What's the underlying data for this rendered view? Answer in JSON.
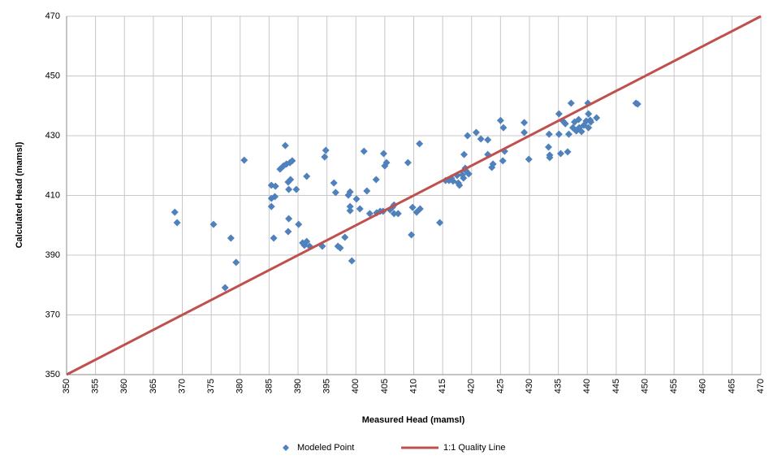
{
  "chart_data": {
    "type": "scatter",
    "x_label": "Measured Head (mamsl)",
    "y_label": "Calculated Head (mamsl)",
    "xlim": [
      350,
      470
    ],
    "ylim": [
      350,
      470
    ],
    "xticks": [
      350,
      355,
      360,
      365,
      370,
      375,
      380,
      385,
      390,
      395,
      400,
      405,
      410,
      415,
      420,
      425,
      430,
      435,
      440,
      445,
      450,
      455,
      460,
      465,
      470
    ],
    "yticks": [
      350,
      370,
      390,
      410,
      430,
      450,
      470
    ],
    "grid": true,
    "legend": "bottom",
    "series": [
      {
        "name": "Modeled Point",
        "color": "#4f81bd",
        "mode": "markers",
        "x": [
          368.7,
          369.1,
          375.4,
          378.4,
          377.4,
          379.3,
          380.7,
          385.4,
          386.1,
          385.4,
          386.0,
          385.4,
          385.8,
          386.9,
          387.5,
          387.8,
          388.0,
          388.6,
          389.0,
          388.3,
          388.7,
          388.4,
          388.4,
          388.3,
          389.7,
          390.1,
          391.5,
          390.8,
          391.1,
          391.5,
          392.0,
          394.2,
          394.8,
          394.6,
          396.2,
          396.5,
          396.9,
          397.3,
          398.1,
          398.7,
          399.0,
          399.0,
          399.0,
          399.3,
          400.1,
          400.7,
          401.4,
          401.9,
          402.4,
          403.5,
          403.6,
          404.2,
          404.7,
          404.8,
          405.0,
          405.3,
          405.9,
          406.3,
          406.6,
          406.6,
          407.3,
          409.0,
          409.6,
          409.8,
          410.5,
          411.1,
          411.0,
          414.5,
          415.5,
          416.1,
          416.5,
          416.8,
          417.5,
          417.7,
          417.9,
          418.4,
          418.6,
          418.9,
          418.7,
          419.0,
          419.5,
          419.3,
          420.8,
          421.6,
          422.8,
          422.8,
          423.5,
          423.7,
          425.0,
          425.5,
          425.7,
          425.4,
          429.1,
          429.1,
          429.9,
          433.4,
          433.3,
          433.5,
          433.5,
          435.1,
          435.1,
          435.4,
          435.8,
          436.2,
          436.6,
          437.2,
          436.8,
          437.5,
          437.8,
          438.1,
          438.5,
          438.6,
          439.0,
          439.4,
          439.8,
          440.1,
          440.2,
          440.5,
          440.2,
          440.6,
          441.6,
          448.4,
          448.7
        ],
        "values": [
          404.4,
          400.9,
          400.3,
          395.7,
          379.1,
          387.6,
          421.8,
          413.4,
          413.1,
          409.0,
          409.6,
          406.3,
          395.7,
          418.8,
          419.9,
          426.7,
          420.5,
          421.0,
          421.6,
          414.5,
          415.3,
          412.0,
          402.2,
          397.9,
          412.0,
          400.3,
          416.4,
          394.1,
          393.3,
          394.6,
          393.0,
          393.0,
          425.1,
          422.9,
          414.2,
          411.0,
          393.0,
          392.4,
          396.0,
          410.1,
          411.2,
          406.3,
          404.9,
          388.1,
          408.8,
          405.5,
          424.8,
          411.5,
          403.9,
          415.3,
          404.2,
          404.7,
          404.7,
          424.0,
          419.9,
          421.0,
          405.2,
          406.0,
          406.8,
          403.9,
          403.9,
          421.0,
          396.8,
          406.0,
          404.4,
          405.5,
          427.3,
          400.9,
          415.0,
          415.0,
          415.8,
          414.8,
          416.7,
          414.2,
          413.4,
          416.9,
          415.8,
          419.1,
          423.7,
          418.3,
          417.2,
          430.0,
          431.1,
          428.9,
          428.6,
          423.7,
          419.4,
          420.5,
          435.1,
          432.7,
          424.8,
          421.6,
          434.4,
          431.1,
          422.1,
          430.5,
          426.2,
          423.5,
          422.7,
          437.3,
          430.5,
          424.0,
          434.9,
          434.0,
          424.6,
          440.9,
          430.5,
          432.7,
          434.6,
          431.6,
          435.4,
          432.7,
          431.4,
          433.5,
          434.9,
          440.9,
          437.3,
          435.2,
          432.7,
          434.6,
          436.0,
          440.9,
          440.6
        ]
      },
      {
        "name": "1:1 Quality Line",
        "color": "#c0504d",
        "mode": "line",
        "x": [
          350,
          470
        ],
        "values": [
          350,
          470
        ]
      }
    ]
  }
}
